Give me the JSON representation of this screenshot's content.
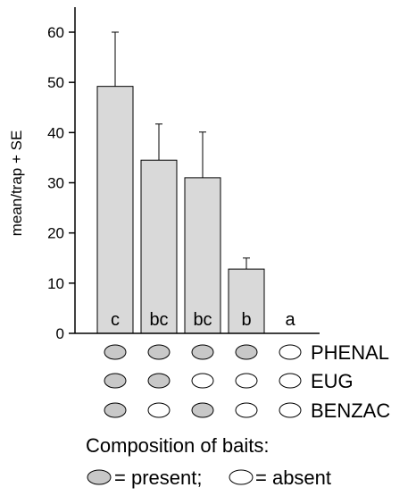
{
  "chart_data": {
    "type": "bar",
    "ylabel": "mean/trap + SE",
    "ylim": [
      0,
      65
    ],
    "yticks": [
      0,
      10,
      20,
      30,
      40,
      50,
      60
    ],
    "grid": false,
    "categories": [
      "c",
      "bc",
      "bc",
      "b",
      "a"
    ],
    "values": [
      49.2,
      34.5,
      31.0,
      12.8,
      0
    ],
    "errors": [
      10.8,
      7.2,
      9.1,
      2.2,
      0
    ],
    "bar_color": "#d9d9d9",
    "composition": {
      "rows": [
        {
          "label": "PHENAL",
          "present": [
            true,
            true,
            true,
            true,
            false
          ]
        },
        {
          "label": "EUG",
          "present": [
            true,
            true,
            false,
            false,
            false
          ]
        },
        {
          "label": "BENZAC",
          "present": [
            true,
            false,
            true,
            false,
            false
          ]
        }
      ],
      "present_color": "#c8c8c8",
      "absent_color": "#ffffff"
    },
    "legend": {
      "title": "Composition of baits:",
      "present_label": "= present;",
      "absent_label": "= absent"
    }
  }
}
